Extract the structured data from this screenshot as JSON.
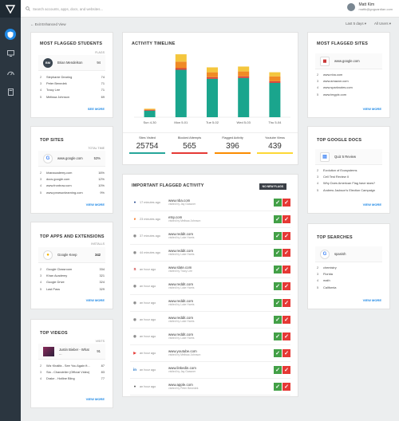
{
  "search": {
    "placeholder": "Search accounts, apps, docs, and websites..."
  },
  "user": {
    "name": "Matt Kim",
    "email": "mattk@goguardian.com"
  },
  "subbar": {
    "exit": "Exit Enhanced View",
    "range": "Last 5 days",
    "users": "All Users"
  },
  "flagged_students": {
    "title": "MOST FLAGGED STUDENTS",
    "col": "FLAGS",
    "top": {
      "initials": "BM",
      "name": "Brian Mendelson",
      "value": "94"
    },
    "items": [
      {
        "rank": "2",
        "name": "Stephanie Dearing",
        "value": "74"
      },
      {
        "rank": "3",
        "name": "Peter Benedek",
        "value": "71"
      },
      {
        "rank": "4",
        "name": "Tracy Lee",
        "value": "71"
      },
      {
        "rank": "5",
        "name": "Melissa Johnson",
        "value": "69"
      }
    ],
    "more": "SEE MORE"
  },
  "top_sites": {
    "title": "TOP SITES",
    "col": "TOTAL TIME",
    "top": {
      "name": "www.google.com",
      "value": "53%"
    },
    "items": [
      {
        "rank": "2",
        "name": "khanacademy.com",
        "value": "16%"
      },
      {
        "rank": "3",
        "name": "docs.google.com",
        "value": "12%"
      },
      {
        "rank": "4",
        "name": "www.frontrow.com",
        "value": "10%"
      },
      {
        "rank": "5",
        "name": "www.pearsonlearning.com",
        "value": "9%"
      }
    ],
    "more": "VIEW MORE"
  },
  "top_apps": {
    "title": "TOP APPS AND EXTENSIONS",
    "col": "INSTALLS",
    "top": {
      "name": "Google Keep",
      "value": "342"
    },
    "items": [
      {
        "rank": "2",
        "name": "Google Classroom",
        "value": "334"
      },
      {
        "rank": "3",
        "name": "Khan Academy",
        "value": "321"
      },
      {
        "rank": "4",
        "name": "Google Drive",
        "value": "324"
      },
      {
        "rank": "5",
        "name": "Last Pass",
        "value": "329"
      }
    ],
    "more": "VIEW MORE"
  },
  "top_videos": {
    "title": "TOP VIDEOS",
    "col": "VISITS",
    "top": {
      "name": "Justin Bieber - What ...",
      "value": "91"
    },
    "items": [
      {
        "rank": "2",
        "name": "Wiz Khalifa - See You Again ft...",
        "value": "87"
      },
      {
        "rank": "3",
        "name": "Sia - Chandelier (Official Video)",
        "value": "83"
      },
      {
        "rank": "4",
        "name": "Drake - Hotline Bling",
        "value": "77"
      }
    ],
    "more": "VIEW MORE"
  },
  "timeline": {
    "title": "ACTIVITY TIMELINE",
    "stats": [
      {
        "label": "Sites Visited",
        "value": "25754",
        "color": "#26a69a"
      },
      {
        "label": "Blocked Attempts",
        "value": "565",
        "color": "#e53935"
      },
      {
        "label": "Flagged Activity",
        "value": "396",
        "color": "#fb8c00"
      },
      {
        "label": "Youtube Views",
        "value": "439",
        "color": "#fdd835"
      }
    ]
  },
  "chart_data": {
    "type": "bar",
    "title": "ACTIVITY TIMELINE",
    "categories": [
      "Sun 4-30",
      "Mon 5-01",
      "Tue 5-02",
      "Wed 5-03",
      "Thu 5-04"
    ],
    "series": [
      {
        "name": "Sites Visited",
        "values": [
          8,
          58,
          47,
          48,
          42
        ]
      },
      {
        "name": "Blocked Attempts",
        "values": [
          0.8,
          2,
          2,
          2,
          2
        ]
      },
      {
        "name": "Flagged Activity",
        "values": [
          0.8,
          8,
          6,
          6,
          6
        ]
      },
      {
        "name": "Youtube Views",
        "values": [
          0.8,
          9,
          6,
          6,
          5
        ]
      }
    ],
    "colors": [
      "#1aa58d",
      "#d84339",
      "#f08a24",
      "#f4c63d"
    ],
    "ylim": [
      0,
      80
    ]
  },
  "flagged_activity": {
    "title": "IMPORTANT FLAGGED ACTIVITY",
    "badge": "NO NEW FLAGS",
    "rows": [
      {
        "icon": "nba-icon",
        "time": "17 minutes ago",
        "site": "www.nba.com",
        "user": "visited by Jay Gassner"
      },
      {
        "icon": "etsy-icon",
        "time": "23 minutes ago",
        "site": "etsy.com",
        "user": "visited by Melissa Johnson"
      },
      {
        "icon": "reddit-icon",
        "time": "37 minutes ago",
        "site": "www.reddit.com",
        "user": "visited by Luke Harris"
      },
      {
        "icon": "reddit-icon",
        "time": "44 minutes ago",
        "site": "www.reddit.com",
        "user": "visited by Luke Harris"
      },
      {
        "icon": "slate-icon",
        "time": "an hour ago",
        "site": "www.slate.com",
        "user": "visited by Tracy Lee"
      },
      {
        "icon": "reddit-icon",
        "time": "an hour ago",
        "site": "www.reddit.com",
        "user": "visited by Luke Harris"
      },
      {
        "icon": "reddit-icon",
        "time": "an hour ago",
        "site": "www.reddit.com",
        "user": "visited by Luke Harris"
      },
      {
        "icon": "reddit-icon",
        "time": "an hour ago",
        "site": "www.reddit.com",
        "user": "visited by Luke Harris"
      },
      {
        "icon": "reddit-icon",
        "time": "an hour ago",
        "site": "www.reddit.com",
        "user": "visited by Luke Harris"
      },
      {
        "icon": "youtube-icon",
        "time": "an hour ago",
        "site": "www.youtube.com",
        "user": "visited by Melissa Johnson"
      },
      {
        "icon": "linkedin-icon",
        "time": "an hour ago",
        "site": "www.linkedin.com",
        "user": "visited by Jay Gassner"
      },
      {
        "icon": "apple-icon",
        "time": "an hour ago",
        "site": "www.apple.com",
        "user": "visited by Peter Benedek"
      }
    ]
  },
  "flagged_sites": {
    "title": "MOST FLAGGED SITES",
    "top": {
      "name": "www.google.com"
    },
    "items": [
      {
        "rank": "2",
        "name": "www.nba.com"
      },
      {
        "rank": "3",
        "name": "www.amazon.com"
      },
      {
        "rank": "4",
        "name": "www.sparknotes.com"
      },
      {
        "rank": "5",
        "name": "www.imgpix.com"
      }
    ],
    "more": "VIEW MORE"
  },
  "google_docs": {
    "title": "TOP GOOGLE DOCS",
    "top": {
      "name": "Quiz 5 Review"
    },
    "items": [
      {
        "rank": "2",
        "name": "Evolution of Ecosystems"
      },
      {
        "rank": "3",
        "name": "Cell Test Review II"
      },
      {
        "rank": "4",
        "name": "Why Does American Flag have stars?"
      },
      {
        "rank": "5",
        "name": "Andrew Jackson's Election Campaign"
      }
    ],
    "more": "VIEW MORE"
  },
  "searches": {
    "title": "TOP SEARCHES",
    "top": {
      "name": "spanish"
    },
    "items": [
      {
        "rank": "2",
        "name": "chemistry"
      },
      {
        "rank": "3",
        "name": "Florida"
      },
      {
        "rank": "4",
        "name": "math"
      },
      {
        "rank": "5",
        "name": "California"
      }
    ],
    "more": "VIEW MORE"
  }
}
